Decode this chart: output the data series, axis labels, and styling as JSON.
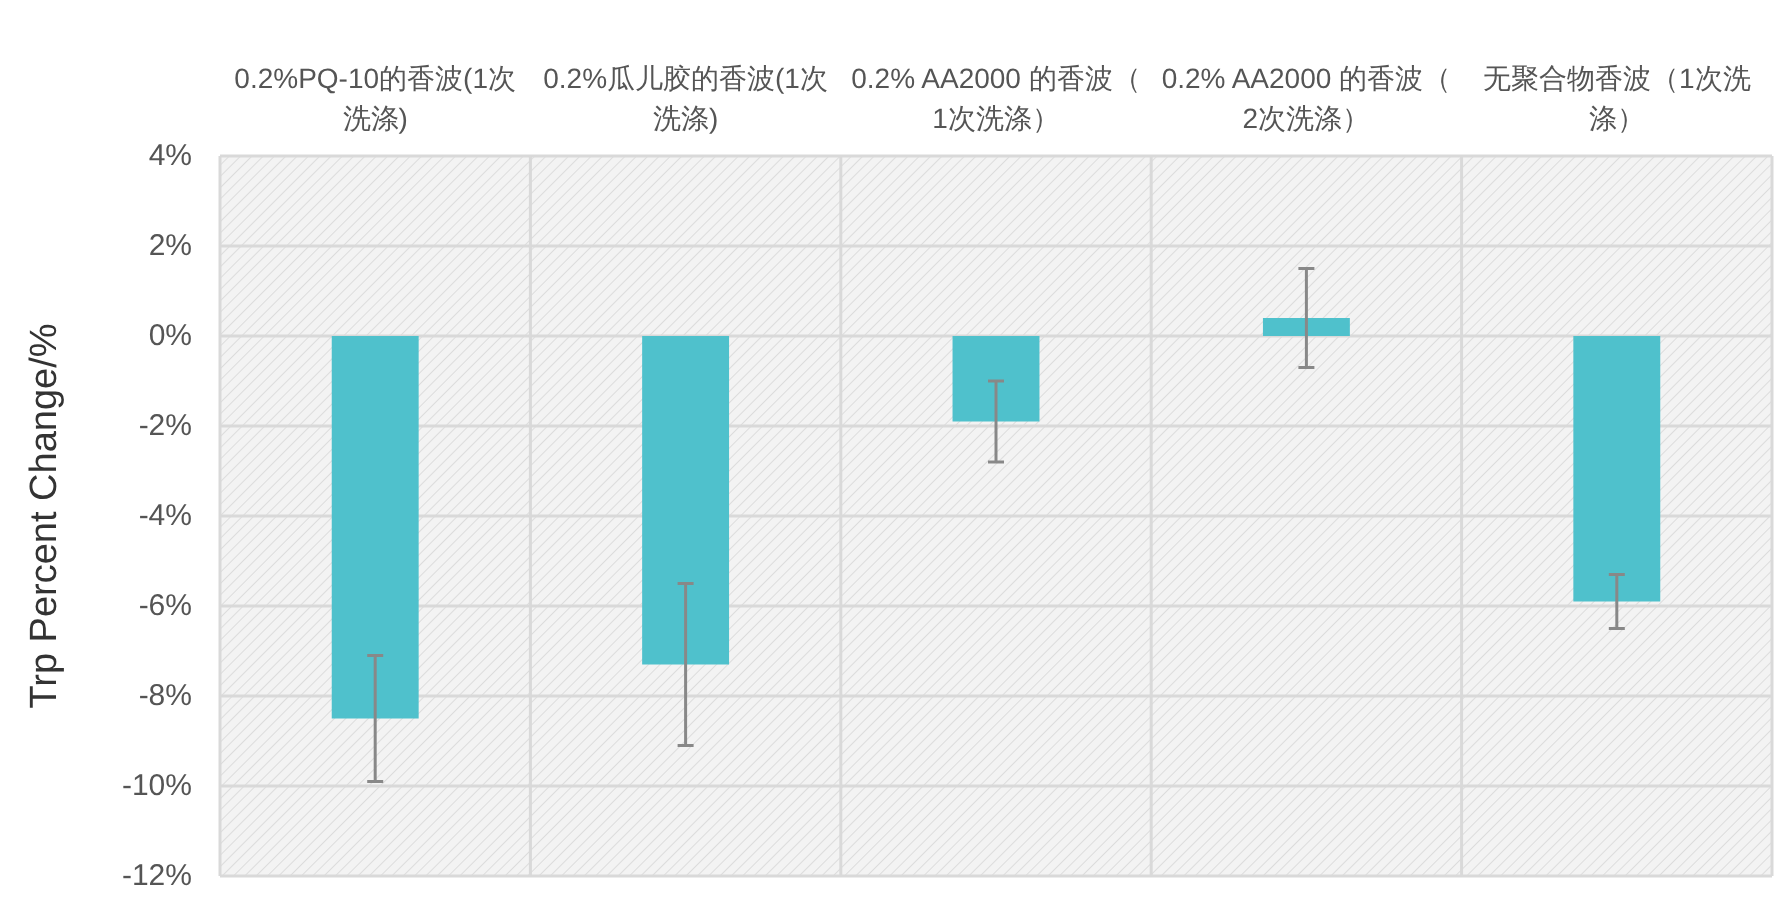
{
  "chart_data": {
    "type": "bar",
    "categories": [
      "0.2%PQ-10的香波(1次洗涤)",
      "0.2%瓜儿胶的香波(1次洗涤)",
      "0.2% AA2000 的香波（1次洗涤）",
      "0.2% AA2000 的香波（2次洗涤）",
      "无聚合物香波（1次洗涤）"
    ],
    "values": [
      -8.5,
      -7.3,
      -1.9,
      0.4,
      -5.9
    ],
    "errors": [
      1.4,
      1.8,
      0.9,
      1.1,
      0.6
    ],
    "color": "#4fc1cc",
    "ylabel": "Trp Percent Change/%",
    "ylim": [
      -12,
      4
    ],
    "yticks": [
      {
        "value": 4,
        "label": "4%"
      },
      {
        "value": 2,
        "label": "2%"
      },
      {
        "value": 0,
        "label": "0%"
      },
      {
        "value": -2,
        "label": "-2%"
      },
      {
        "value": -4,
        "label": "-4%"
      },
      {
        "value": -6,
        "label": "-6%"
      },
      {
        "value": -8,
        "label": "-8%"
      },
      {
        "value": -10,
        "label": "-10%"
      },
      {
        "value": -12,
        "label": "-12%"
      }
    ],
    "grid": true
  }
}
